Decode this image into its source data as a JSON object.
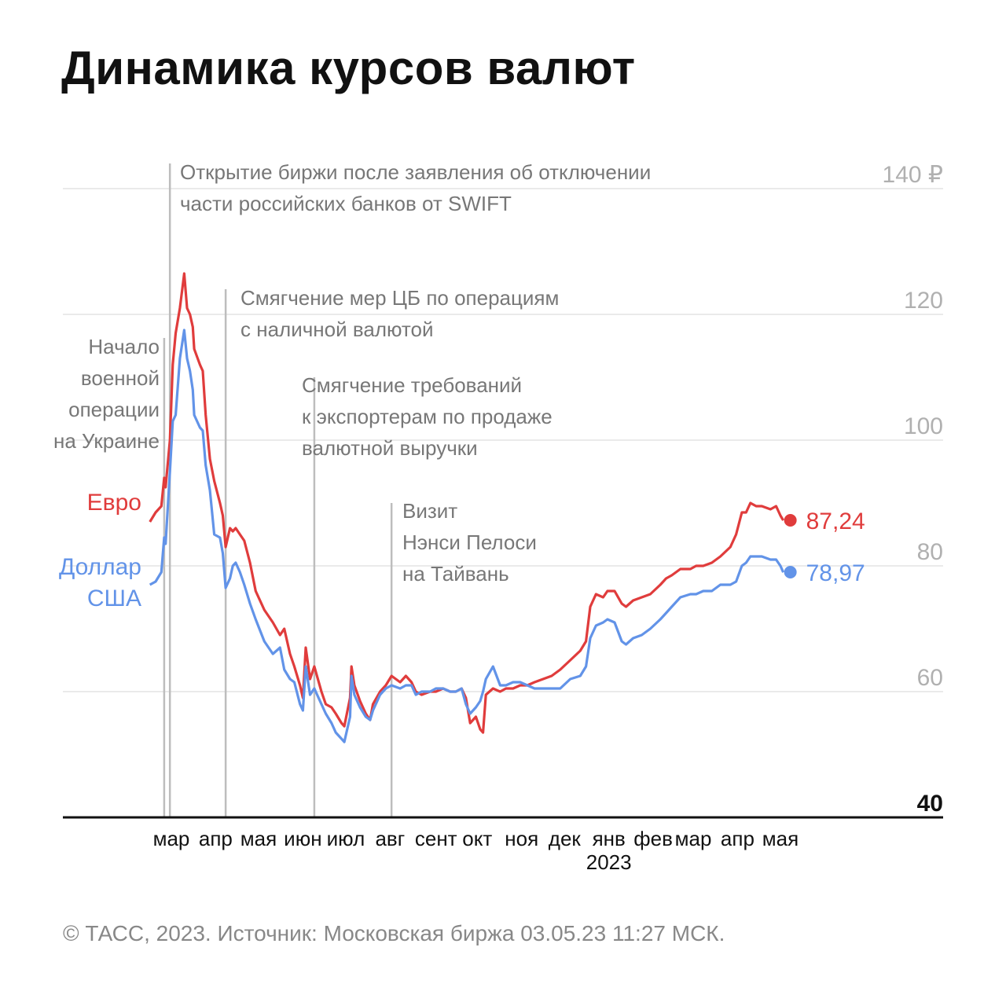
{
  "title": "Динамика курсов валют",
  "footer": "© ТАСС, 2023. Источник: Московская биржа 03.05.23 11:27 МСК.",
  "colors": {
    "euro": "#e03c3c",
    "usd": "#6293e8",
    "grid": "#e3e3e3",
    "event": "#bdbdbd"
  },
  "chart_data": {
    "type": "line",
    "title": "Динамика курсов валют",
    "y_ticks": [
      "40",
      "60",
      "80",
      "100",
      "120",
      "140 ₽"
    ],
    "ylim": [
      40,
      140
    ],
    "x_ticks": [
      "мар",
      "апр",
      "мая",
      "июн",
      "июл",
      "авг",
      "сент",
      "окт",
      "ноя",
      "дек",
      "янв",
      "фев",
      "мар",
      "апр",
      "мая"
    ],
    "x_year_label": "2023",
    "xlim": [
      "2022-02-10",
      "2023-05-31"
    ],
    "grid": true,
    "series": [
      {
        "name": "Евро",
        "key": "euro",
        "last_label": "87,24",
        "last_value": 87.24,
        "points": [
          [
            "2022-02-14",
            87.0
          ],
          [
            "2022-02-18",
            88.5
          ],
          [
            "2022-02-22",
            89.5
          ],
          [
            "2022-02-24",
            94.0
          ],
          [
            "2022-02-25",
            92.5
          ],
          [
            "2022-02-28",
            100.0
          ],
          [
            "2022-03-02",
            112.0
          ],
          [
            "2022-03-04",
            117.0
          ],
          [
            "2022-03-07",
            121.0
          ],
          [
            "2022-03-10",
            126.5
          ],
          [
            "2022-03-12",
            121.0
          ],
          [
            "2022-03-14",
            120.0
          ],
          [
            "2022-03-16",
            118.0
          ],
          [
            "2022-03-17",
            114.5
          ],
          [
            "2022-03-21",
            112.0
          ],
          [
            "2022-03-23",
            111.0
          ],
          [
            "2022-03-25",
            104.0
          ],
          [
            "2022-03-28",
            97.0
          ],
          [
            "2022-03-31",
            93.5
          ],
          [
            "2022-04-04",
            90.0
          ],
          [
            "2022-04-06",
            88.0
          ],
          [
            "2022-04-08",
            83.0
          ],
          [
            "2022-04-11",
            86.0
          ],
          [
            "2022-04-13",
            85.5
          ],
          [
            "2022-04-15",
            86.0
          ],
          [
            "2022-04-18",
            85.0
          ],
          [
            "2022-04-21",
            84.0
          ],
          [
            "2022-04-25",
            80.5
          ],
          [
            "2022-04-29",
            76.0
          ],
          [
            "2022-05-05",
            73.0
          ],
          [
            "2022-05-11",
            71.0
          ],
          [
            "2022-05-16",
            69.0
          ],
          [
            "2022-05-19",
            70.0
          ],
          [
            "2022-05-23",
            66.0
          ],
          [
            "2022-05-26",
            64.0
          ],
          [
            "2022-05-30",
            61.0
          ],
          [
            "2022-06-01",
            59.0
          ],
          [
            "2022-06-03",
            67.0
          ],
          [
            "2022-06-06",
            62.0
          ],
          [
            "2022-06-09",
            64.0
          ],
          [
            "2022-06-14",
            60.0
          ],
          [
            "2022-06-17",
            58.0
          ],
          [
            "2022-06-21",
            57.5
          ],
          [
            "2022-06-24",
            56.5
          ],
          [
            "2022-06-28",
            55.0
          ],
          [
            "2022-06-30",
            54.5
          ],
          [
            "2022-07-04",
            59.0
          ],
          [
            "2022-07-05",
            64.0
          ],
          [
            "2022-07-07",
            61.0
          ],
          [
            "2022-07-11",
            58.5
          ],
          [
            "2022-07-15",
            56.5
          ],
          [
            "2022-07-18",
            55.5
          ],
          [
            "2022-07-20",
            58.0
          ],
          [
            "2022-07-25",
            60.0
          ],
          [
            "2022-07-29",
            61.0
          ],
          [
            "2022-08-02",
            62.5
          ],
          [
            "2022-08-08",
            61.5
          ],
          [
            "2022-08-12",
            62.5
          ],
          [
            "2022-08-16",
            61.5
          ],
          [
            "2022-08-19",
            60.0
          ],
          [
            "2022-08-23",
            59.5
          ],
          [
            "2022-08-29",
            60.0
          ],
          [
            "2022-09-02",
            60.0
          ],
          [
            "2022-09-07",
            60.5
          ],
          [
            "2022-09-12",
            60.0
          ],
          [
            "2022-09-16",
            60.0
          ],
          [
            "2022-09-20",
            60.5
          ],
          [
            "2022-09-23",
            59.0
          ],
          [
            "2022-09-26",
            55.0
          ],
          [
            "2022-09-30",
            56.0
          ],
          [
            "2022-10-03",
            54.0
          ],
          [
            "2022-10-05",
            53.5
          ],
          [
            "2022-10-07",
            59.5
          ],
          [
            "2022-10-12",
            60.5
          ],
          [
            "2022-10-17",
            60.0
          ],
          [
            "2022-10-21",
            60.5
          ],
          [
            "2022-10-26",
            60.5
          ],
          [
            "2022-10-31",
            61.0
          ],
          [
            "2022-11-05",
            61.0
          ],
          [
            "2022-11-10",
            61.5
          ],
          [
            "2022-11-16",
            62.0
          ],
          [
            "2022-11-22",
            62.5
          ],
          [
            "2022-11-28",
            63.5
          ],
          [
            "2022-12-05",
            65.0
          ],
          [
            "2022-12-12",
            66.5
          ],
          [
            "2022-12-16",
            68.0
          ],
          [
            "2022-12-19",
            73.5
          ],
          [
            "2022-12-23",
            75.5
          ],
          [
            "2022-12-28",
            75.0
          ],
          [
            "2022-12-31",
            76.0
          ],
          [
            "2023-01-05",
            76.0
          ],
          [
            "2023-01-10",
            74.0
          ],
          [
            "2023-01-13",
            73.5
          ],
          [
            "2023-01-18",
            74.5
          ],
          [
            "2023-01-24",
            75.0
          ],
          [
            "2023-01-30",
            75.5
          ],
          [
            "2023-02-06",
            77.0
          ],
          [
            "2023-02-10",
            78.0
          ],
          [
            "2023-02-14",
            78.5
          ],
          [
            "2023-02-20",
            79.5
          ],
          [
            "2023-02-27",
            79.5
          ],
          [
            "2023-03-03",
            80.0
          ],
          [
            "2023-03-08",
            80.0
          ],
          [
            "2023-03-14",
            80.5
          ],
          [
            "2023-03-20",
            81.5
          ],
          [
            "2023-03-27",
            83.0
          ],
          [
            "2023-03-31",
            85.0
          ],
          [
            "2023-04-04",
            88.5
          ],
          [
            "2023-04-07",
            88.5
          ],
          [
            "2023-04-10",
            90.0
          ],
          [
            "2023-04-14",
            89.5
          ],
          [
            "2023-04-18",
            89.5
          ],
          [
            "2023-04-24",
            89.0
          ],
          [
            "2023-04-28",
            89.5
          ],
          [
            "2023-05-01",
            88.0
          ],
          [
            "2023-05-03",
            87.24
          ]
        ]
      },
      {
        "name": "Доллар США",
        "key": "usd",
        "last_label": "78,97",
        "last_value": 78.97,
        "points": [
          [
            "2022-02-14",
            77.0
          ],
          [
            "2022-02-18",
            77.5
          ],
          [
            "2022-02-22",
            79.0
          ],
          [
            "2022-02-24",
            84.5
          ],
          [
            "2022-02-25",
            83.5
          ],
          [
            "2022-02-28",
            95.0
          ],
          [
            "2022-03-02",
            103.0
          ],
          [
            "2022-03-04",
            104.0
          ],
          [
            "2022-03-07",
            113.0
          ],
          [
            "2022-03-10",
            117.5
          ],
          [
            "2022-03-12",
            113.0
          ],
          [
            "2022-03-14",
            111.0
          ],
          [
            "2022-03-16",
            108.0
          ],
          [
            "2022-03-17",
            104.0
          ],
          [
            "2022-03-21",
            102.0
          ],
          [
            "2022-03-23",
            101.5
          ],
          [
            "2022-03-25",
            96.0
          ],
          [
            "2022-03-28",
            92.0
          ],
          [
            "2022-03-31",
            85.0
          ],
          [
            "2022-04-04",
            84.5
          ],
          [
            "2022-04-06",
            82.0
          ],
          [
            "2022-04-08",
            76.5
          ],
          [
            "2022-04-11",
            78.0
          ],
          [
            "2022-04-13",
            80.0
          ],
          [
            "2022-04-15",
            80.5
          ],
          [
            "2022-04-18",
            79.0
          ],
          [
            "2022-04-21",
            77.0
          ],
          [
            "2022-04-25",
            74.0
          ],
          [
            "2022-04-29",
            71.5
          ],
          [
            "2022-05-05",
            68.0
          ],
          [
            "2022-05-11",
            66.0
          ],
          [
            "2022-05-16",
            67.0
          ],
          [
            "2022-05-19",
            63.5
          ],
          [
            "2022-05-23",
            62.0
          ],
          [
            "2022-05-26",
            61.5
          ],
          [
            "2022-05-30",
            58.0
          ],
          [
            "2022-06-01",
            57.0
          ],
          [
            "2022-06-03",
            64.0
          ],
          [
            "2022-06-06",
            59.5
          ],
          [
            "2022-06-09",
            60.5
          ],
          [
            "2022-06-14",
            58.0
          ],
          [
            "2022-06-17",
            56.5
          ],
          [
            "2022-06-21",
            55.0
          ],
          [
            "2022-06-24",
            53.5
          ],
          [
            "2022-06-28",
            52.5
          ],
          [
            "2022-06-30",
            52.0
          ],
          [
            "2022-07-04",
            56.0
          ],
          [
            "2022-07-05",
            62.5
          ],
          [
            "2022-07-07",
            59.5
          ],
          [
            "2022-07-11",
            57.5
          ],
          [
            "2022-07-15",
            56.0
          ],
          [
            "2022-07-18",
            55.5
          ],
          [
            "2022-07-20",
            57.0
          ],
          [
            "2022-07-25",
            59.5
          ],
          [
            "2022-07-29",
            60.5
          ],
          [
            "2022-08-02",
            61.0
          ],
          [
            "2022-08-08",
            60.5
          ],
          [
            "2022-08-12",
            61.0
          ],
          [
            "2022-08-16",
            61.0
          ],
          [
            "2022-08-19",
            59.5
          ],
          [
            "2022-08-23",
            60.0
          ],
          [
            "2022-08-29",
            60.0
          ],
          [
            "2022-09-02",
            60.5
          ],
          [
            "2022-09-07",
            60.5
          ],
          [
            "2022-09-12",
            60.0
          ],
          [
            "2022-09-16",
            60.0
          ],
          [
            "2022-09-20",
            60.5
          ],
          [
            "2022-09-23",
            58.0
          ],
          [
            "2022-09-26",
            56.5
          ],
          [
            "2022-09-30",
            57.5
          ],
          [
            "2022-10-03",
            58.5
          ],
          [
            "2022-10-05",
            60.0
          ],
          [
            "2022-10-07",
            62.0
          ],
          [
            "2022-10-12",
            64.0
          ],
          [
            "2022-10-17",
            61.0
          ],
          [
            "2022-10-21",
            61.0
          ],
          [
            "2022-10-26",
            61.5
          ],
          [
            "2022-10-31",
            61.5
          ],
          [
            "2022-11-05",
            61.0
          ],
          [
            "2022-11-10",
            60.5
          ],
          [
            "2022-11-16",
            60.5
          ],
          [
            "2022-11-22",
            60.5
          ],
          [
            "2022-11-28",
            60.5
          ],
          [
            "2022-12-05",
            62.0
          ],
          [
            "2022-12-12",
            62.5
          ],
          [
            "2022-12-16",
            64.0
          ],
          [
            "2022-12-19",
            68.5
          ],
          [
            "2022-12-23",
            70.5
          ],
          [
            "2022-12-28",
            71.0
          ],
          [
            "2022-12-31",
            71.5
          ],
          [
            "2023-01-05",
            71.0
          ],
          [
            "2023-01-10",
            68.0
          ],
          [
            "2023-01-13",
            67.5
          ],
          [
            "2023-01-18",
            68.5
          ],
          [
            "2023-01-24",
            69.0
          ],
          [
            "2023-01-30",
            70.0
          ],
          [
            "2023-02-06",
            71.5
          ],
          [
            "2023-02-10",
            72.5
          ],
          [
            "2023-02-14",
            73.5
          ],
          [
            "2023-02-20",
            75.0
          ],
          [
            "2023-02-27",
            75.5
          ],
          [
            "2023-03-03",
            75.5
          ],
          [
            "2023-03-08",
            76.0
          ],
          [
            "2023-03-14",
            76.0
          ],
          [
            "2023-03-20",
            77.0
          ],
          [
            "2023-03-27",
            77.0
          ],
          [
            "2023-03-31",
            77.5
          ],
          [
            "2023-04-04",
            80.0
          ],
          [
            "2023-04-07",
            80.5
          ],
          [
            "2023-04-10",
            81.5
          ],
          [
            "2023-04-14",
            81.5
          ],
          [
            "2023-04-18",
            81.5
          ],
          [
            "2023-04-24",
            81.0
          ],
          [
            "2023-04-28",
            81.0
          ],
          [
            "2023-05-01",
            80.0
          ],
          [
            "2023-05-03",
            78.97
          ]
        ]
      }
    ],
    "annotations": [
      {
        "date": "2022-02-24",
        "lines": [
          "Начало",
          "военной",
          "операции",
          "на Украине"
        ]
      },
      {
        "date": "2022-02-28",
        "lines": [
          "Открытие биржи после заявления об отключении",
          "части российских банков от SWIFT"
        ]
      },
      {
        "date": "2022-04-08",
        "lines": [
          "Смягчение мер ЦБ по операциям",
          "с наличной валютой"
        ]
      },
      {
        "date": "2022-06-09",
        "lines": [
          "Смягчение требований",
          "к экспортерам по продаже",
          "валютной выручки"
        ]
      },
      {
        "date": "2022-08-02",
        "lines": [
          "Визит",
          "Нэнси Пелоси",
          "на Тайвань"
        ]
      }
    ]
  }
}
